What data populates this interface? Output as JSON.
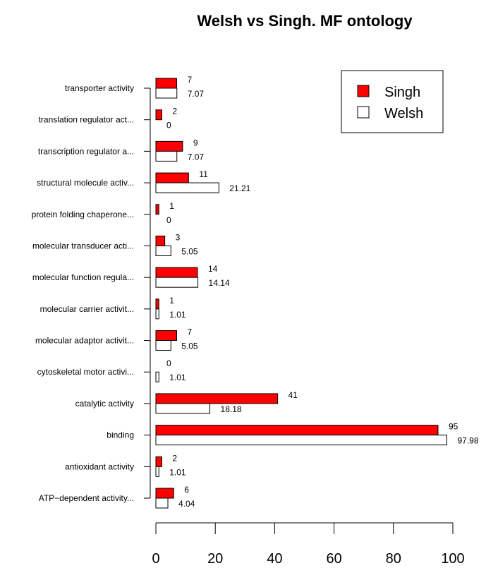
{
  "chart_data": {
    "type": "bar",
    "orientation": "horizontal",
    "title": "Welsh vs Singh. MF ontology",
    "xlabel": "",
    "ylabel": "",
    "xlim": [
      0,
      100
    ],
    "x_ticks": [
      "0",
      "20",
      "40",
      "60",
      "80",
      "100"
    ],
    "categories": [
      "transporter activity",
      "translation regulator act...",
      "transcription regulator a...",
      "structural molecule activ...",
      "protein folding chaperone...",
      "molecular transducer acti...",
      "molecular function regula...",
      "molecular carrier activit...",
      "molecular adaptor activit...",
      "cytoskeletal motor activi...",
      "catalytic activity",
      "binding",
      "antioxidant activity",
      "ATP−dependent activity..."
    ],
    "series": [
      {
        "name": "Singh",
        "color": "#ff0000",
        "values": [
          7,
          2,
          9,
          11,
          1,
          3,
          14,
          1,
          7,
          0,
          41,
          95,
          2,
          6
        ],
        "labels": [
          "7",
          "2",
          "9",
          "11",
          "1",
          "3",
          "14",
          "1",
          "7",
          "0",
          "41",
          "95",
          "2",
          "6"
        ]
      },
      {
        "name": "Welsh",
        "color": "#ffffff",
        "values": [
          7.07,
          0,
          7.07,
          21.21,
          0,
          5.05,
          14.14,
          1.01,
          5.05,
          1.01,
          18.18,
          97.98,
          1.01,
          4.04
        ],
        "labels": [
          "7.07",
          "0",
          "7.07",
          "21.21",
          "0",
          "5.05",
          "14.14",
          "1.01",
          "5.05",
          "1.01",
          "18.18",
          "97.98",
          "1.01",
          "4.04"
        ]
      }
    ],
    "legend": {
      "position": "top-right"
    },
    "grid": false
  }
}
